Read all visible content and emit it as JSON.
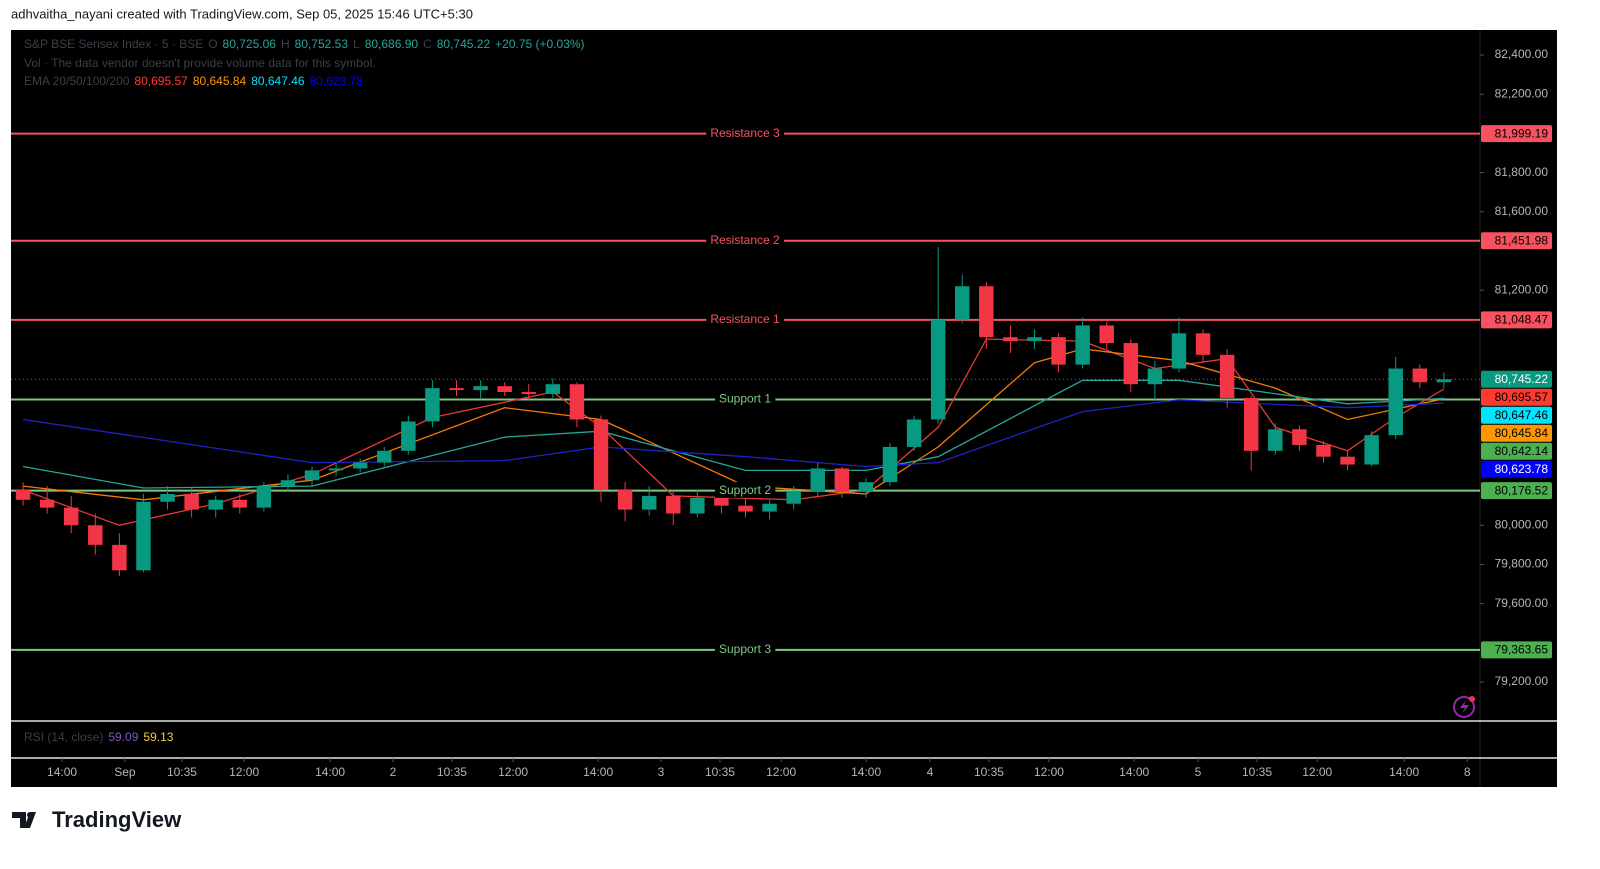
{
  "header": {
    "credit": "adhvaitha_nayani created with TradingView.com, Sep 05, 2025 15:46 UTC+5:30"
  },
  "footer": {
    "brand": "TradingView"
  },
  "chart_data": {
    "type": "candlestick",
    "legend": {
      "symbol": "S&P BSE Sensex Index · 5 · BSE",
      "ohlc": [
        {
          "key": "O",
          "value": "80,725.06"
        },
        {
          "key": "H",
          "value": "80,752.53"
        },
        {
          "key": "L",
          "value": "80,686.90"
        },
        {
          "key": "C",
          "value": "80,745.22"
        }
      ],
      "change": "+20.75 (+0.03%)",
      "volume": "Vol · The data vendor doesn't provide volume data for this symbol.",
      "ema_title": "EMA 20/50/100/200"
    },
    "up_color": "#089981",
    "down_color": "#f23645",
    "candles": [
      [
        80180,
        80220,
        80100,
        80130
      ],
      [
        80130,
        80200,
        80060,
        80090
      ],
      [
        80090,
        80150,
        79960,
        80000
      ],
      [
        80000,
        80060,
        79850,
        79900
      ],
      [
        79900,
        79960,
        79740,
        79770
      ],
      [
        79770,
        80160,
        79760,
        80120
      ],
      [
        80120,
        80200,
        80080,
        80160
      ],
      [
        80160,
        80190,
        80040,
        80080
      ],
      [
        80080,
        80150,
        80040,
        80130
      ],
      [
        80130,
        80160,
        80060,
        80090
      ],
      [
        80090,
        80220,
        80070,
        80200
      ],
      [
        80200,
        80260,
        80170,
        80230
      ],
      [
        80230,
        80300,
        80200,
        80280
      ],
      [
        80280,
        80320,
        80250,
        80290
      ],
      [
        80290,
        80340,
        80270,
        80320
      ],
      [
        80320,
        80400,
        80300,
        80380
      ],
      [
        80380,
        80560,
        80360,
        80530
      ],
      [
        80530,
        80740,
        80500,
        80700
      ],
      [
        80700,
        80740,
        80660,
        80690
      ],
      [
        80690,
        80740,
        80650,
        80710
      ],
      [
        80710,
        80730,
        80660,
        80680
      ],
      [
        80680,
        80720,
        80640,
        80670
      ],
      [
        80670,
        80750,
        80650,
        80720
      ],
      [
        80720,
        80730,
        80500,
        80540
      ],
      [
        80540,
        80560,
        80120,
        80180
      ],
      [
        80180,
        80220,
        80020,
        80080
      ],
      [
        80080,
        80200,
        80050,
        80150
      ],
      [
        80150,
        80180,
        80000,
        80060
      ],
      [
        80060,
        80180,
        80040,
        80140
      ],
      [
        80140,
        80200,
        80060,
        80100
      ],
      [
        80100,
        80160,
        80040,
        80070
      ],
      [
        80070,
        80130,
        80030,
        80110
      ],
      [
        80110,
        80200,
        80080,
        80170
      ],
      [
        80170,
        80320,
        80150,
        80290
      ],
      [
        80290,
        80300,
        80140,
        80170
      ],
      [
        80170,
        80240,
        80140,
        80220
      ],
      [
        80220,
        80420,
        80200,
        80400
      ],
      [
        80400,
        80560,
        80380,
        80540
      ],
      [
        80540,
        81420,
        80520,
        81050
      ],
      [
        81050,
        81280,
        81030,
        81220
      ],
      [
        81220,
        81240,
        80900,
        80960
      ],
      [
        80960,
        81020,
        80880,
        80940
      ],
      [
        80940,
        81000,
        80900,
        80960
      ],
      [
        80960,
        80980,
        80780,
        80820
      ],
      [
        80820,
        81060,
        80800,
        81020
      ],
      [
        81020,
        81040,
        80900,
        80930
      ],
      [
        80930,
        80950,
        80680,
        80720
      ],
      [
        80720,
        80840,
        80640,
        80800
      ],
      [
        80800,
        81060,
        80780,
        80980
      ],
      [
        80980,
        81000,
        80830,
        80870
      ],
      [
        80870,
        80900,
        80600,
        80650
      ],
      [
        80650,
        80660,
        80280,
        80380
      ],
      [
        80380,
        80520,
        80360,
        80490
      ],
      [
        80490,
        80510,
        80380,
        80410
      ],
      [
        80410,
        80430,
        80320,
        80350
      ],
      [
        80350,
        80380,
        80280,
        80310
      ],
      [
        80310,
        80480,
        80300,
        80460
      ],
      [
        80460,
        80860,
        80440,
        80800
      ],
      [
        80800,
        80820,
        80700,
        80730
      ],
      [
        80730,
        80780,
        80700,
        80745.22
      ]
    ],
    "series": [
      {
        "color": "#e53935",
        "label": "80,695.57",
        "current": 80695.57,
        "x": [
          0,
          4,
          8,
          12,
          17,
          22,
          24,
          27,
          32,
          35,
          38,
          40,
          44,
          47,
          50,
          52,
          55,
          57,
          59
        ],
        "values": [
          80180,
          80000,
          80110,
          80260,
          80550,
          80680,
          80500,
          80150,
          80130,
          80180,
          80500,
          80950,
          80940,
          80800,
          80850,
          80500,
          80380,
          80550,
          80695.57
        ]
      },
      {
        "color": "#f57c00",
        "label": "80,645.84",
        "current": 80645.84,
        "x": [
          0,
          5,
          12,
          20,
          24,
          30,
          35,
          38,
          42,
          44,
          48,
          52,
          55,
          59
        ],
        "values": [
          80200,
          80130,
          80230,
          80600,
          80540,
          80200,
          80160,
          80400,
          80830,
          80900,
          80840,
          80700,
          80540,
          80645.84
        ]
      },
      {
        "color": "#26a69a",
        "label": "80,647.46",
        "current": 80647.46,
        "x": [
          0,
          5,
          12,
          20,
          24,
          30,
          35,
          38,
          44,
          48,
          55,
          59
        ],
        "values": [
          80300,
          80190,
          80200,
          80450,
          80480,
          80280,
          80280,
          80350,
          80740,
          80740,
          80620,
          80647.46
        ]
      },
      {
        "color": "#1e22c8",
        "label": "80,623.78",
        "current": 80623.78,
        "x": [
          0,
          12,
          20,
          24,
          30,
          35,
          38,
          44,
          48,
          55,
          59
        ],
        "values": [
          80540,
          80320,
          80330,
          80400,
          80350,
          80300,
          80320,
          80580,
          80640,
          80600,
          80623.78
        ]
      }
    ],
    "label_colors": [
      "#ff3b30",
      "#ff9800",
      "#00e5ff",
      "#0000ff"
    ],
    "last_price": {
      "value": 80745.22,
      "label": "80,745.22",
      "color": "#089981"
    },
    "levels": [
      {
        "name": "Resistance 3",
        "value": 81999.19,
        "label": "81,999.19",
        "color": "#f7525f"
      },
      {
        "name": "Resistance 2",
        "value": 81451.98,
        "label": "81,451.98",
        "color": "#f7525f"
      },
      {
        "name": "Resistance 1",
        "value": 81048.47,
        "label": "81,048.47",
        "color": "#f7525f"
      },
      {
        "name": "Support 1",
        "value": 80642.14,
        "label": "80,642.14",
        "color": "#81c784"
      },
      {
        "name": "Support 2",
        "value": 80176.52,
        "label": "80,176.52",
        "color": "#81c784"
      },
      {
        "name": "Support 3",
        "value": 79363.65,
        "label": "79,363.65",
        "color": "#81c784"
      }
    ],
    "ylim": [
      79006,
      82528
    ],
    "yticks": [
      {
        "value": 82400,
        "label": "82,400.00"
      },
      {
        "value": 82200,
        "label": "82,200.00"
      },
      {
        "value": 81800,
        "label": "81,800.00"
      },
      {
        "value": 81600,
        "label": "81,600.00"
      },
      {
        "value": 81200,
        "label": "81,200.00"
      },
      {
        "value": 80000,
        "label": "80,000.00"
      },
      {
        "value": 79800,
        "label": "79,800.00"
      },
      {
        "value": 79600,
        "label": "79,600.00"
      },
      {
        "value": 79200,
        "label": "79,200.00"
      }
    ],
    "xlim": [
      -0.5,
      60.5
    ],
    "xticks": [
      {
        "value": 1.62,
        "label": "14:00"
      },
      {
        "value": 4.23,
        "label": "Sep"
      },
      {
        "value": 6.6,
        "label": "10:35"
      },
      {
        "value": 9.18,
        "label": "12:00"
      },
      {
        "value": 12.75,
        "label": "14:00"
      },
      {
        "value": 15.36,
        "label": "2"
      },
      {
        "value": 17.81,
        "label": "10:35"
      },
      {
        "value": 20.35,
        "label": "12:00"
      },
      {
        "value": 23.88,
        "label": "14:00"
      },
      {
        "value": 26.49,
        "label": "3"
      },
      {
        "value": 28.94,
        "label": "10:35"
      },
      {
        "value": 31.48,
        "label": "12:00"
      },
      {
        "value": 35.01,
        "label": "14:00"
      },
      {
        "value": 37.66,
        "label": "4"
      },
      {
        "value": 40.11,
        "label": "10:35"
      },
      {
        "value": 42.6,
        "label": "12:00"
      },
      {
        "value": 46.14,
        "label": "14:00"
      },
      {
        "value": 48.79,
        "label": "5"
      },
      {
        "value": 51.24,
        "label": "10:35"
      },
      {
        "value": 53.74,
        "label": "12:00"
      },
      {
        "value": 57.35,
        "label": "14:00"
      },
      {
        "value": 59.97,
        "label": "8"
      }
    ],
    "rsi": {
      "title": "RSI (14, close)",
      "values": [
        {
          "label": "59.09",
          "color": "#7e57c2"
        },
        {
          "label": "59.13",
          "color": "#f7c948"
        }
      ]
    }
  }
}
